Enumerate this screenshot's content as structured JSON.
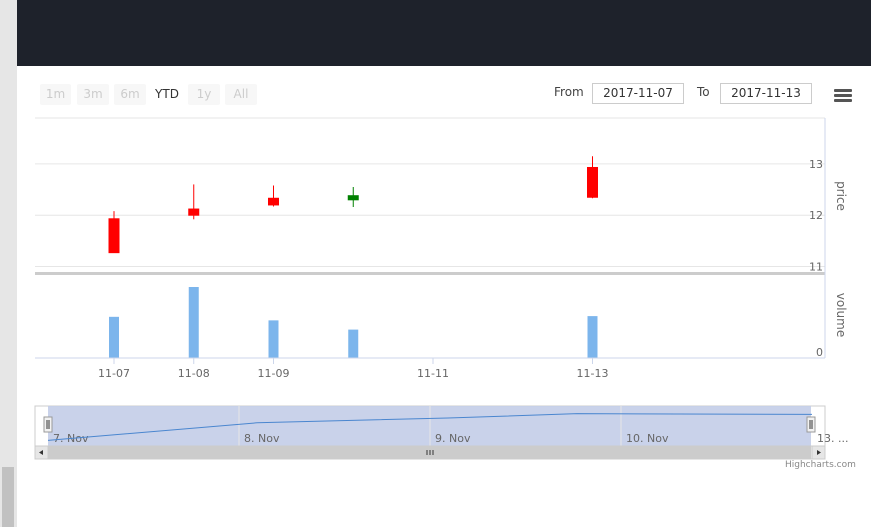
{
  "toolbar": {
    "zoom_buttons": [
      "1m",
      "3m",
      "6m",
      "YTD",
      "1y",
      "All"
    ],
    "active_zoom": "YTD",
    "from_label": "From",
    "from_value": "2017-11-07",
    "to_label": "To",
    "to_value": "2017-11-13"
  },
  "credit": "Highcharts.com",
  "colors": {
    "up": "#008000",
    "down": "#ff0000",
    "volume": "#7cb5ec",
    "navigator_fill": "#c3cde8",
    "header_dark": "#1e222b"
  },
  "icons": {
    "menu": "hamburger-menu-icon",
    "nav_left": "arrow-left-icon",
    "nav_right": "arrow-right-icon",
    "grip": "grip-icon"
  },
  "chart_data": [
    {
      "type": "candlestick",
      "ylabel": "price",
      "ylim": [
        11,
        13.2
      ],
      "yticks": [
        "11",
        "12",
        "13"
      ],
      "x": [
        "2017-11-07",
        "2017-11-08",
        "2017-11-09",
        "2017-11-10",
        "2017-11-13"
      ],
      "open": [
        11.93,
        12.12,
        12.33,
        12.3,
        12.93
      ],
      "high": [
        12.08,
        12.6,
        12.58,
        12.55,
        13.15
      ],
      "low": [
        11.27,
        11.92,
        12.17,
        12.16,
        12.33
      ],
      "close": [
        11.27,
        12.0,
        12.2,
        12.38,
        12.35
      ]
    },
    {
      "type": "bar",
      "ylabel": "volume",
      "ylim": [
        0,
        100
      ],
      "yticks": [
        "0"
      ],
      "x": [
        "2017-11-07",
        "2017-11-08",
        "2017-11-09",
        "2017-11-10",
        "2017-11-13"
      ],
      "values": [
        58,
        100,
        53,
        40,
        59
      ]
    },
    {
      "type": "area",
      "role": "navigator",
      "tick_labels": [
        "7. Nov",
        "8. Nov",
        "9. Nov",
        "10. Nov",
        "13. ..."
      ],
      "values": [
        11.27,
        12.0,
        12.2,
        12.38,
        12.35
      ]
    }
  ],
  "x_axis": {
    "tick_labels": [
      "11-07",
      "11-08",
      "11-09",
      "11-11",
      "11-13"
    ],
    "tick_dates": [
      "2017-11-07",
      "2017-11-08",
      "2017-11-09",
      "2017-11-11",
      "2017-11-13"
    ]
  }
}
